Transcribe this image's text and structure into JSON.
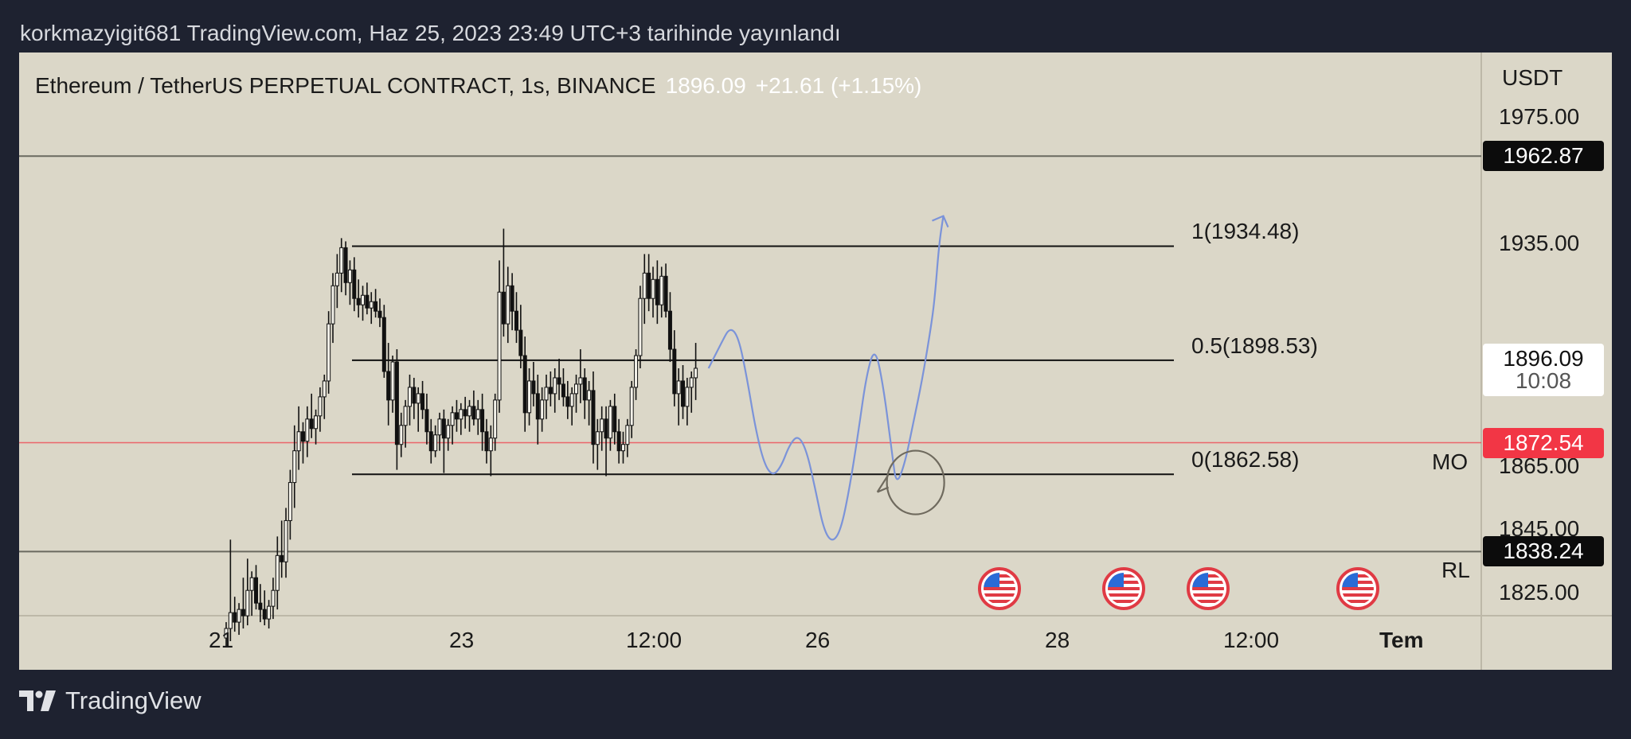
{
  "caption": "korkmazyigit681 TradingView.com, Haz 25, 2023 23:49 UTC+3 tarihinde yayınlandı",
  "legend": {
    "symbol": "Ethereum / TetherUS PERPETUAL CONTRACT, 1s, BINANCE",
    "last_price": "1896.09",
    "change": "+21.61 (+1.15%)"
  },
  "footer": {
    "brand": "TradingView"
  },
  "colors": {
    "chart_bg": "#dbd7c8",
    "page_bg": "#1e2230",
    "projection": "#7b93d9",
    "red_line": "#f23645",
    "price_box": "#ffffff",
    "black_tag": "#0c0c0c"
  },
  "chart_data": {
    "type": "candlestick",
    "symbol": "Ethereum / TetherUS PERPETUAL CONTRACT",
    "interval": "1s",
    "exchange": "BINANCE",
    "y_axis": {
      "unit": "USDT",
      "range": [
        1808,
        1988
      ],
      "ticks": [
        {
          "value": 1975,
          "label": "1975.00"
        },
        {
          "value": 1935,
          "label": "1935.00"
        },
        {
          "value": 1865,
          "label": "1865.00"
        },
        {
          "value": 1845,
          "label": "1845.00"
        },
        {
          "value": 1825,
          "label": "1825.00"
        }
      ]
    },
    "x_axis": {
      "ticks": [
        "21",
        "23",
        "12:00",
        "26",
        "28",
        "12:00",
        "Tem"
      ]
    },
    "price_tags": {
      "top_line": {
        "value": 1962.87,
        "label": "1962.87"
      },
      "current": {
        "value": 1896.09,
        "label": "1896.09",
        "countdown": "10:08"
      },
      "red_line": {
        "value": 1872.54,
        "label": "1872.54"
      },
      "rl_line": {
        "value": 1838.24,
        "label": "1838.24"
      }
    },
    "line_labels": {
      "mo": "MO",
      "rl": "RL"
    },
    "fib_levels": [
      {
        "ratio": "1",
        "value": 1934.48,
        "label": "1(1934.48)"
      },
      {
        "ratio": "0.5",
        "value": 1898.53,
        "label": "0.5(1898.53)"
      },
      {
        "ratio": "0",
        "value": 1862.58,
        "label": "0(1862.58)"
      }
    ],
    "candles": [
      [
        1811,
        1816,
        1808,
        1814
      ],
      [
        1814,
        1842,
        1810,
        1819
      ],
      [
        1819,
        1824,
        1813,
        1816
      ],
      [
        1816,
        1822,
        1812,
        1820
      ],
      [
        1820,
        1830,
        1814,
        1818
      ],
      [
        1818,
        1836,
        1815,
        1826
      ],
      [
        1826,
        1832,
        1818,
        1830
      ],
      [
        1830,
        1834,
        1820,
        1822
      ],
      [
        1822,
        1828,
        1816,
        1820
      ],
      [
        1820,
        1826,
        1815,
        1817
      ],
      [
        1817,
        1823,
        1814,
        1821
      ],
      [
        1821,
        1830,
        1817,
        1826
      ],
      [
        1826,
        1843,
        1820,
        1837
      ],
      [
        1837,
        1848,
        1830,
        1835
      ],
      [
        1835,
        1852,
        1830,
        1848
      ],
      [
        1848,
        1864,
        1842,
        1860
      ],
      [
        1860,
        1878,
        1852,
        1870
      ],
      [
        1870,
        1884,
        1864,
        1876
      ],
      [
        1876,
        1879,
        1866,
        1873
      ],
      [
        1873,
        1884,
        1868,
        1880
      ],
      [
        1880,
        1888,
        1874,
        1877
      ],
      [
        1877,
        1883,
        1872,
        1881
      ],
      [
        1881,
        1890,
        1876,
        1887
      ],
      [
        1887,
        1894,
        1880,
        1892
      ],
      [
        1892,
        1914,
        1888,
        1910
      ],
      [
        1910,
        1926,
        1904,
        1922
      ],
      [
        1922,
        1932,
        1915,
        1926
      ],
      [
        1926,
        1937,
        1920,
        1934
      ],
      [
        1934,
        1936,
        1919,
        1923
      ],
      [
        1923,
        1930,
        1916,
        1927
      ],
      [
        1927,
        1931,
        1914,
        1918
      ],
      [
        1918,
        1924,
        1912,
        1916
      ],
      [
        1916,
        1922,
        1911,
        1919
      ],
      [
        1919,
        1923,
        1913,
        1915
      ],
      [
        1915,
        1920,
        1910,
        1917
      ],
      [
        1917,
        1921,
        1912,
        1914
      ],
      [
        1914,
        1918,
        1909,
        1912
      ],
      [
        1912,
        1916,
        1893,
        1895
      ],
      [
        1895,
        1904,
        1878,
        1886
      ],
      [
        1886,
        1900,
        1882,
        1898
      ],
      [
        1898,
        1902,
        1864,
        1872
      ],
      [
        1872,
        1882,
        1868,
        1878
      ],
      [
        1878,
        1886,
        1871,
        1884
      ],
      [
        1884,
        1894,
        1878,
        1890
      ],
      [
        1890,
        1893,
        1880,
        1885
      ],
      [
        1885,
        1890,
        1876,
        1888
      ],
      [
        1888,
        1892,
        1880,
        1883
      ],
      [
        1883,
        1888,
        1872,
        1876
      ],
      [
        1876,
        1880,
        1866,
        1870
      ],
      [
        1870,
        1878,
        1868,
        1875
      ],
      [
        1875,
        1882,
        1870,
        1880
      ],
      [
        1880,
        1883,
        1863,
        1874
      ],
      [
        1874,
        1880,
        1870,
        1878
      ],
      [
        1878,
        1884,
        1872,
        1882
      ],
      [
        1882,
        1886,
        1876,
        1880
      ],
      [
        1880,
        1885,
        1875,
        1883
      ],
      [
        1883,
        1887,
        1877,
        1881
      ],
      [
        1881,
        1886,
        1876,
        1884
      ],
      [
        1884,
        1889,
        1878,
        1880
      ],
      [
        1880,
        1886,
        1875,
        1883
      ],
      [
        1883,
        1888,
        1870,
        1876
      ],
      [
        1876,
        1880,
        1866,
        1870
      ],
      [
        1870,
        1878,
        1862,
        1874
      ],
      [
        1874,
        1888,
        1870,
        1886
      ],
      [
        1886,
        1930,
        1882,
        1920
      ],
      [
        1920,
        1940,
        1906,
        1910
      ],
      [
        1910,
        1928,
        1904,
        1922
      ],
      [
        1922,
        1926,
        1908,
        1914
      ],
      [
        1914,
        1920,
        1904,
        1908
      ],
      [
        1908,
        1916,
        1896,
        1900
      ],
      [
        1900,
        1906,
        1876,
        1882
      ],
      [
        1882,
        1896,
        1878,
        1892
      ],
      [
        1892,
        1898,
        1884,
        1888
      ],
      [
        1888,
        1894,
        1872,
        1880
      ],
      [
        1880,
        1890,
        1876,
        1886
      ],
      [
        1886,
        1894,
        1880,
        1890
      ],
      [
        1890,
        1895,
        1884,
        1888
      ],
      [
        1888,
        1896,
        1882,
        1893
      ],
      [
        1893,
        1899,
        1886,
        1891
      ],
      [
        1891,
        1896,
        1884,
        1887
      ],
      [
        1887,
        1892,
        1880,
        1884
      ],
      [
        1884,
        1890,
        1878,
        1888
      ],
      [
        1888,
        1894,
        1882,
        1891
      ],
      [
        1891,
        1902,
        1885,
        1893
      ],
      [
        1893,
        1896,
        1880,
        1886
      ],
      [
        1886,
        1892,
        1878,
        1889
      ],
      [
        1889,
        1895,
        1866,
        1872
      ],
      [
        1872,
        1880,
        1864,
        1876
      ],
      [
        1876,
        1884,
        1870,
        1880
      ],
      [
        1880,
        1884,
        1862,
        1874
      ],
      [
        1874,
        1886,
        1870,
        1884
      ],
      [
        1884,
        1888,
        1872,
        1876
      ],
      [
        1876,
        1880,
        1866,
        1870
      ],
      [
        1870,
        1876,
        1866,
        1872
      ],
      [
        1872,
        1880,
        1868,
        1878
      ],
      [
        1878,
        1892,
        1874,
        1890
      ],
      [
        1890,
        1902,
        1886,
        1900
      ],
      [
        1900,
        1922,
        1896,
        1918
      ],
      [
        1918,
        1932,
        1910,
        1926
      ],
      [
        1926,
        1932,
        1914,
        1918
      ],
      [
        1918,
        1928,
        1912,
        1924
      ],
      [
        1924,
        1930,
        1910,
        1916
      ],
      [
        1916,
        1928,
        1912,
        1925
      ],
      [
        1925,
        1929,
        1912,
        1914
      ],
      [
        1914,
        1920,
        1898,
        1902
      ],
      [
        1902,
        1908,
        1884,
        1888
      ],
      [
        1888,
        1896,
        1878,
        1892
      ],
      [
        1892,
        1897,
        1880,
        1884
      ],
      [
        1884,
        1893,
        1878,
        1890
      ],
      [
        1890,
        1895,
        1882,
        1893
      ],
      [
        1893,
        1904,
        1886,
        1896
      ]
    ],
    "projection_path": [
      [
        113,
        1896
      ],
      [
        116,
        1904
      ],
      [
        118,
        1909
      ],
      [
        120,
        1906
      ],
      [
        122,
        1893
      ],
      [
        124,
        1877
      ],
      [
        126,
        1866
      ],
      [
        128,
        1862
      ],
      [
        130,
        1865
      ],
      [
        132,
        1872
      ],
      [
        134,
        1875
      ],
      [
        136,
        1870
      ],
      [
        138,
        1858
      ],
      [
        140,
        1845
      ],
      [
        142,
        1841
      ],
      [
        144,
        1845
      ],
      [
        146,
        1858
      ],
      [
        148,
        1875
      ],
      [
        150,
        1894
      ],
      [
        152,
        1903
      ],
      [
        154,
        1890
      ],
      [
        156,
        1869
      ],
      [
        157,
        1859
      ],
      [
        159,
        1866
      ],
      [
        161,
        1879
      ],
      [
        163,
        1892
      ],
      [
        165,
        1908
      ],
      [
        166,
        1918
      ],
      [
        167,
        1935
      ],
      [
        168,
        1944
      ]
    ]
  }
}
